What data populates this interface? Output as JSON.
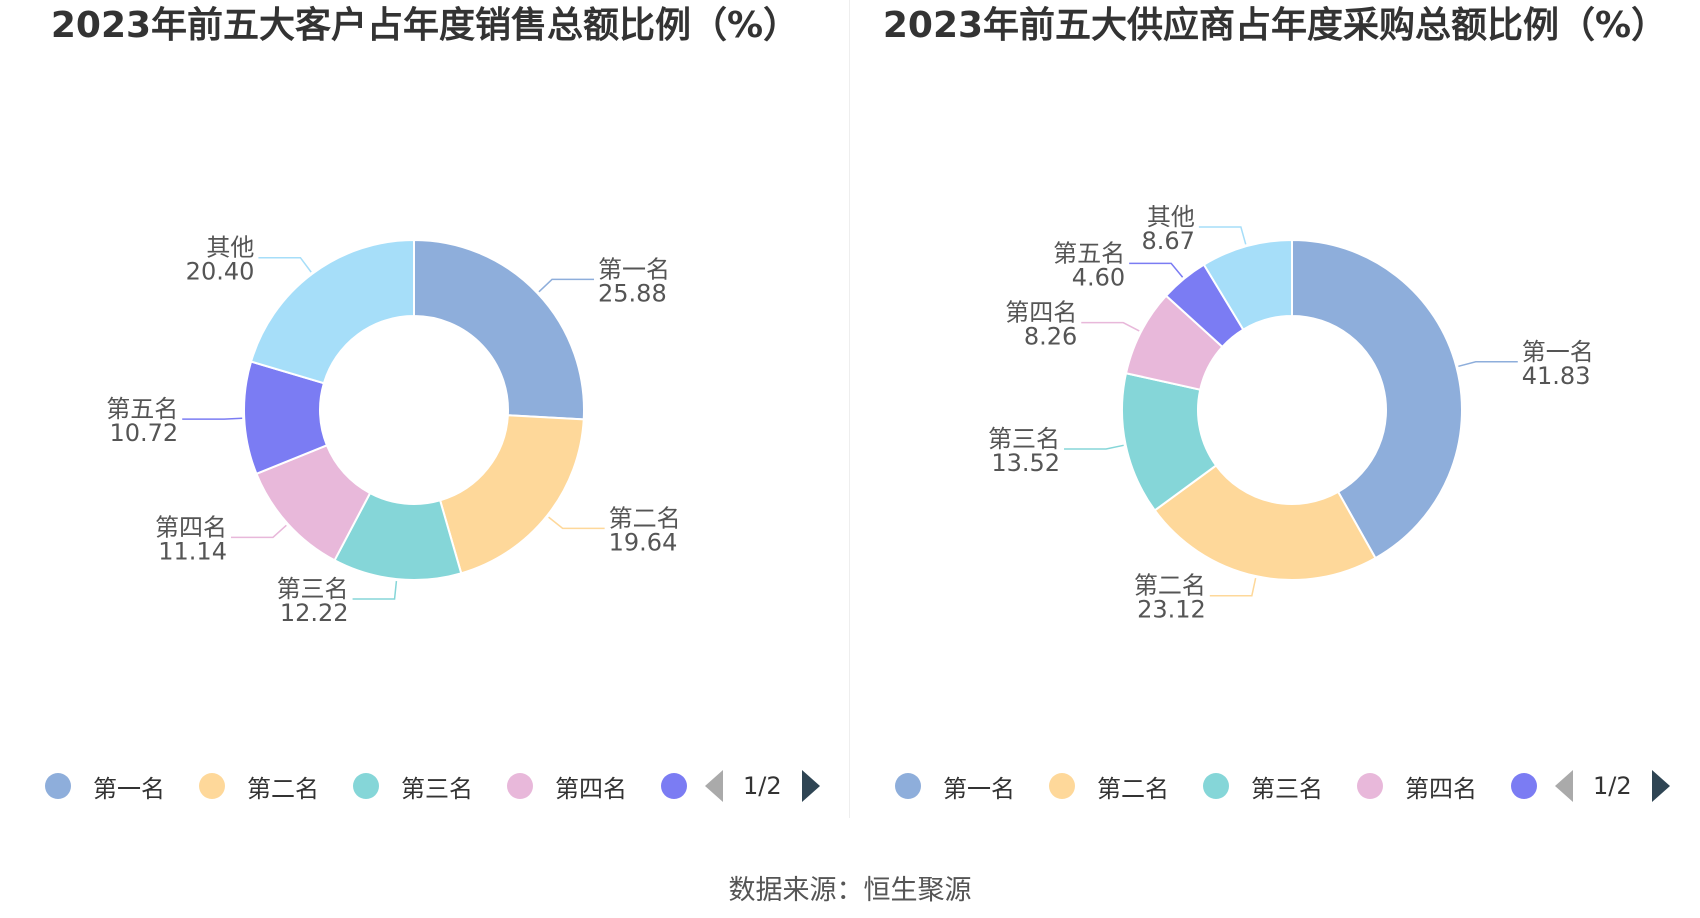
{
  "charts": [
    {
      "title": "2023年前五大客户占年度销售总额比例（%）",
      "legend": {
        "items": [
          "第一名",
          "第二名",
          "第三名",
          "第四名",
          ""
        ],
        "page": "1/2"
      },
      "chart_data": {
        "type": "pie",
        "donut": true,
        "categories": [
          "第一名",
          "第二名",
          "第三名",
          "第四名",
          "第五名",
          "其他"
        ],
        "values": [
          25.88,
          19.64,
          12.22,
          11.14,
          10.72,
          20.4
        ],
        "value_labels": [
          "25.88",
          "19.64",
          "12.22",
          "11.14",
          "10.72",
          "20.40"
        ],
        "colors": [
          "#8eaedb",
          "#fed89a",
          "#85d6d8",
          "#e8b8da",
          "#7b7cf3",
          "#a6def9"
        ]
      }
    },
    {
      "title": "2023年前五大供应商占年度采购总额比例（%）",
      "legend": {
        "items": [
          "第一名",
          "第二名",
          "第三名",
          "第四名",
          ""
        ],
        "page": "1/2"
      },
      "chart_data": {
        "type": "pie",
        "donut": true,
        "categories": [
          "第一名",
          "第二名",
          "第三名",
          "第四名",
          "第五名",
          "其他"
        ],
        "values": [
          41.83,
          23.12,
          13.52,
          8.26,
          4.6,
          8.67
        ],
        "value_labels": [
          "41.83",
          "23.12",
          "13.52",
          "8.26",
          "4.60",
          "8.67"
        ],
        "colors": [
          "#8eaedb",
          "#fed89a",
          "#85d6d8",
          "#e8b8da",
          "#7b7cf3",
          "#a6def9"
        ]
      }
    }
  ],
  "source": "数据来源：恒生聚源"
}
